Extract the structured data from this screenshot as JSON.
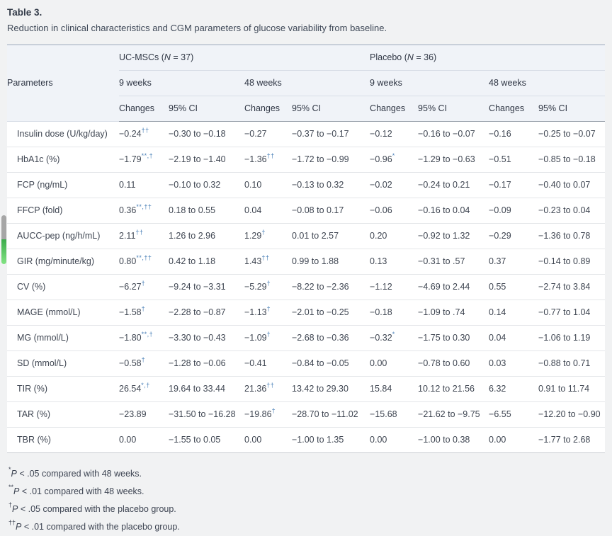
{
  "header": {
    "title": "Table 3.",
    "subtitle": "Reduction in clinical characteristics and CGM parameters of glucose variability from baseline."
  },
  "table": {
    "param_header": "Parameters",
    "groups": [
      {
        "prefix": "UC-MSCs (",
        "n": "N",
        "suffix": " = 37)"
      },
      {
        "prefix": "Placebo (",
        "n": "N",
        "suffix": " = 36)"
      }
    ],
    "periods": [
      "9 weeks",
      "48 weeks",
      "9 weeks",
      "48 weeks"
    ],
    "subcols": [
      "Changes",
      "95% CI"
    ],
    "rows": [
      {
        "param": "Insulin dose (U/kg/day)",
        "cells": [
          {
            "v": "−0.24",
            "sup": "††"
          },
          {
            "v": "−0.30 to −0.18"
          },
          {
            "v": "−0.27"
          },
          {
            "v": "−0.37 to −0.17"
          },
          {
            "v": "−0.12"
          },
          {
            "v": "−0.16 to −0.07"
          },
          {
            "v": "−0.16"
          },
          {
            "v": "−0.25 to −0.07"
          }
        ]
      },
      {
        "param": "HbA1c (%)",
        "cells": [
          {
            "v": "−1.79",
            "sup": "**,†"
          },
          {
            "v": "−2.19 to −1.40"
          },
          {
            "v": "−1.36",
            "sup": "††"
          },
          {
            "v": "−1.72 to −0.99"
          },
          {
            "v": "−0.96",
            "sup": "*"
          },
          {
            "v": "−1.29 to −0.63"
          },
          {
            "v": "−0.51"
          },
          {
            "v": "−0.85 to −0.18"
          }
        ]
      },
      {
        "param": "FCP (ng/mL)",
        "cells": [
          {
            "v": "0.11"
          },
          {
            "v": "−0.10 to 0.32"
          },
          {
            "v": "0.10"
          },
          {
            "v": "−0.13 to 0.32"
          },
          {
            "v": "−0.02"
          },
          {
            "v": "−0.24 to 0.21"
          },
          {
            "v": "−0.17"
          },
          {
            "v": "−0.40 to 0.07"
          }
        ]
      },
      {
        "param": "FFCP (fold)",
        "cells": [
          {
            "v": "0.36",
            "sup": "**,††"
          },
          {
            "v": "0.18 to 0.55"
          },
          {
            "v": "0.04"
          },
          {
            "v": "−0.08 to 0.17"
          },
          {
            "v": "−0.06"
          },
          {
            "v": "−0.16 to 0.04"
          },
          {
            "v": "−0.09"
          },
          {
            "v": "−0.23 to 0.04"
          }
        ]
      },
      {
        "param": "AUCC-pep (ng/h/mL)",
        "cells": [
          {
            "v": "2.11",
            "sup": "††"
          },
          {
            "v": "1.26 to 2.96"
          },
          {
            "v": "1.29",
            "sup": "†"
          },
          {
            "v": "0.01 to 2.57"
          },
          {
            "v": "0.20"
          },
          {
            "v": "−0.92 to 1.32"
          },
          {
            "v": "−0.29"
          },
          {
            "v": "−1.36 to 0.78"
          }
        ]
      },
      {
        "param": "GIR (mg/minute/kg)",
        "cells": [
          {
            "v": "0.80",
            "sup": "**,††"
          },
          {
            "v": "0.42 to 1.18"
          },
          {
            "v": "1.43",
            "sup": "††"
          },
          {
            "v": "0.99 to 1.88"
          },
          {
            "v": "0.13"
          },
          {
            "v": "−0.31 to .57"
          },
          {
            "v": "0.37"
          },
          {
            "v": "−0.14 to 0.89"
          }
        ]
      },
      {
        "param": "CV (%)",
        "cells": [
          {
            "v": "−6.27",
            "sup": "†"
          },
          {
            "v": "−9.24 to −3.31"
          },
          {
            "v": "−5.29",
            "sup": "†"
          },
          {
            "v": "−8.22 to −2.36"
          },
          {
            "v": "−1.12"
          },
          {
            "v": "−4.69 to 2.44"
          },
          {
            "v": "0.55"
          },
          {
            "v": "−2.74 to 3.84"
          }
        ]
      },
      {
        "param": "MAGE (mmol/L)",
        "cells": [
          {
            "v": "−1.58",
            "sup": "†"
          },
          {
            "v": "−2.28 to −0.87"
          },
          {
            "v": "−1.13",
            "sup": "†"
          },
          {
            "v": "−2.01 to −0.25"
          },
          {
            "v": "−0.18"
          },
          {
            "v": "−1.09 to .74"
          },
          {
            "v": "0.14"
          },
          {
            "v": "−0.77 to 1.04"
          }
        ]
      },
      {
        "param": "MG (mmol/L)",
        "cells": [
          {
            "v": "−1.80",
            "sup": "**,†"
          },
          {
            "v": "−3.30 to −0.43"
          },
          {
            "v": "−1.09",
            "sup": "†"
          },
          {
            "v": "−2.68 to −0.36"
          },
          {
            "v": "−0.32",
            "sup": "*"
          },
          {
            "v": "−1.75 to 0.30"
          },
          {
            "v": "0.04"
          },
          {
            "v": "−1.06 to 1.19"
          }
        ]
      },
      {
        "param": "SD (mmol/L)",
        "cells": [
          {
            "v": "−0.58",
            "sup": "†"
          },
          {
            "v": "−1.28 to −0.06"
          },
          {
            "v": "−0.41"
          },
          {
            "v": "−0.84 to −0.05"
          },
          {
            "v": "0.00"
          },
          {
            "v": "−0.78 to 0.60"
          },
          {
            "v": "0.03"
          },
          {
            "v": "−0.88 to 0.71"
          }
        ]
      },
      {
        "param": "TIR (%)",
        "cells": [
          {
            "v": "26.54",
            "sup": "*,†"
          },
          {
            "v": "19.64 to 33.44"
          },
          {
            "v": "21.36",
            "sup": "††"
          },
          {
            "v": "13.42 to 29.30"
          },
          {
            "v": "15.84"
          },
          {
            "v": "10.12 to 21.56"
          },
          {
            "v": "6.32"
          },
          {
            "v": "0.91 to 11.74"
          }
        ]
      },
      {
        "param": "TAR (%)",
        "cells": [
          {
            "v": "−23.89"
          },
          {
            "v": "−31.50 to −16.28"
          },
          {
            "v": "−19.86",
            "sup": "†"
          },
          {
            "v": "−28.70 to −11.02"
          },
          {
            "v": "−15.68"
          },
          {
            "v": "−21.62 to −9.75"
          },
          {
            "v": "−6.55"
          },
          {
            "v": "−12.20 to −0.90"
          }
        ]
      },
      {
        "param": "TBR (%)",
        "cells": [
          {
            "v": "0.00"
          },
          {
            "v": "−1.55 to 0.05"
          },
          {
            "v": "0.00"
          },
          {
            "v": "−1.00 to 1.35"
          },
          {
            "v": "0.00"
          },
          {
            "v": "−1.00 to 0.38"
          },
          {
            "v": "0.00"
          },
          {
            "v": "−1.77 to 2.68"
          }
        ]
      }
    ]
  },
  "footnotes": [
    {
      "marker": "*",
      "p": "P",
      "text": " < .05 compared with 48 weeks."
    },
    {
      "marker": "**",
      "p": "P",
      "text": " < .01 compared with 48 weeks."
    },
    {
      "marker": "†",
      "p": "P",
      "text": " < .05 compared with the placebo group."
    },
    {
      "marker": "††",
      "p": "P",
      "text": " < .01 compared with the placebo group."
    }
  ],
  "colors": {
    "significance_marker": "#4a80b8",
    "scrollbar_gray": "#a6a6a6",
    "scrollbar_green": "#3cab4b"
  }
}
